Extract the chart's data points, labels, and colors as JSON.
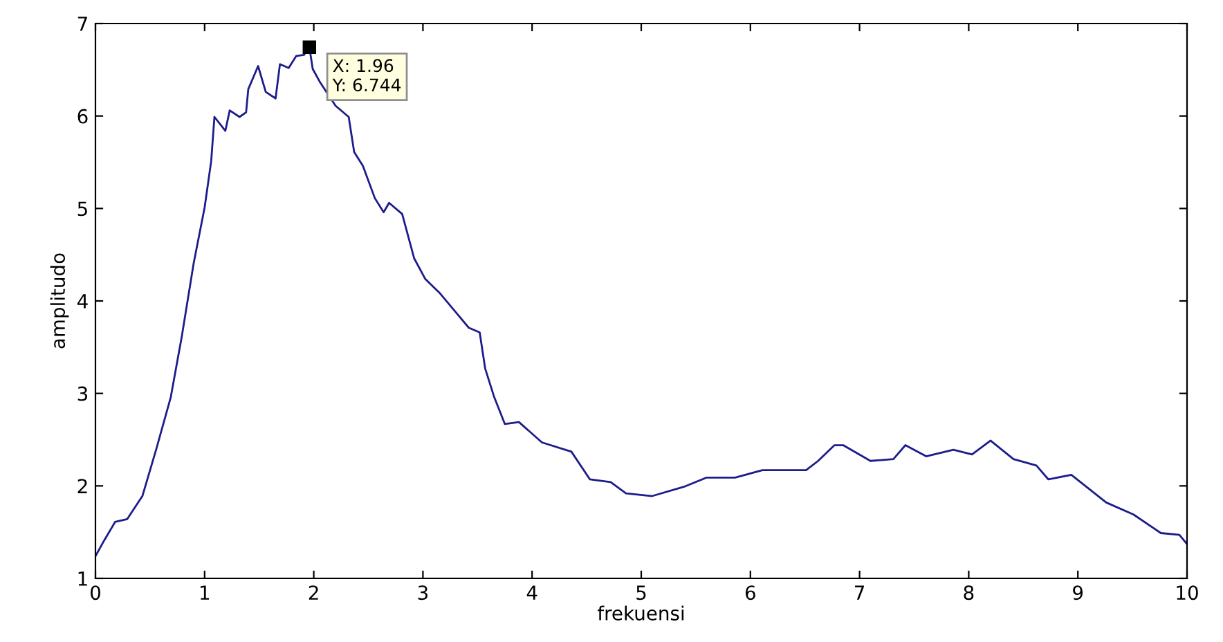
{
  "chart_data": {
    "type": "line",
    "xlabel": "frekuensi",
    "ylabel": "amplitudo",
    "xlim": [
      0,
      10
    ],
    "ylim": [
      1,
      7
    ],
    "xticks": [
      0,
      1,
      2,
      3,
      4,
      5,
      6,
      7,
      8,
      9,
      10
    ],
    "yticks": [
      1,
      2,
      3,
      4,
      5,
      6,
      7
    ],
    "grid": false,
    "series": [
      {
        "color": "#1c1c8c",
        "x": [
          0,
          0.08,
          0.18,
          0.29,
          0.43,
          0.56,
          0.69,
          0.79,
          0.9,
          1.0,
          1.06,
          1.09,
          1.19,
          1.23,
          1.32,
          1.38,
          1.4,
          1.49,
          1.56,
          1.65,
          1.69,
          1.77,
          1.84,
          1.91,
          1.96,
          1.99,
          2.06,
          2.2,
          2.32,
          2.37,
          2.45,
          2.56,
          2.64,
          2.69,
          2.81,
          2.92,
          3.02,
          3.15,
          3.3,
          3.42,
          3.52,
          3.57,
          3.65,
          3.75,
          3.88,
          4.09,
          4.36,
          4.53,
          4.72,
          4.86,
          5.1,
          5.39,
          5.6,
          5.86,
          6.11,
          6.51,
          6.62,
          6.77,
          6.85,
          7.1,
          7.31,
          7.42,
          7.61,
          7.86,
          8.03,
          8.2,
          8.41,
          8.62,
          8.73,
          8.94,
          9.26,
          9.51,
          9.76,
          9.93,
          10.0
        ],
        "values": [
          1.24,
          1.41,
          1.61,
          1.64,
          1.89,
          2.41,
          2.96,
          3.61,
          4.41,
          5.01,
          5.51,
          5.99,
          5.84,
          6.06,
          5.99,
          6.04,
          6.29,
          6.54,
          6.26,
          6.19,
          6.56,
          6.52,
          6.65,
          6.66,
          6.744,
          6.51,
          6.36,
          6.11,
          5.99,
          5.61,
          5.46,
          5.11,
          4.96,
          5.06,
          4.94,
          4.46,
          4.24,
          4.09,
          3.88,
          3.71,
          3.66,
          3.27,
          2.97,
          2.67,
          2.69,
          2.47,
          2.37,
          2.07,
          2.04,
          1.92,
          1.89,
          1.99,
          2.09,
          2.09,
          2.17,
          2.17,
          2.27,
          2.44,
          2.44,
          2.27,
          2.29,
          2.44,
          2.32,
          2.39,
          2.34,
          2.49,
          2.29,
          2.22,
          2.07,
          2.12,
          1.82,
          1.69,
          1.49,
          1.47,
          1.37
        ]
      }
    ],
    "annotations": [
      {
        "text": "X: 1.96\nY: 6.744",
        "x": 1.96,
        "y": 6.744
      }
    ]
  }
}
